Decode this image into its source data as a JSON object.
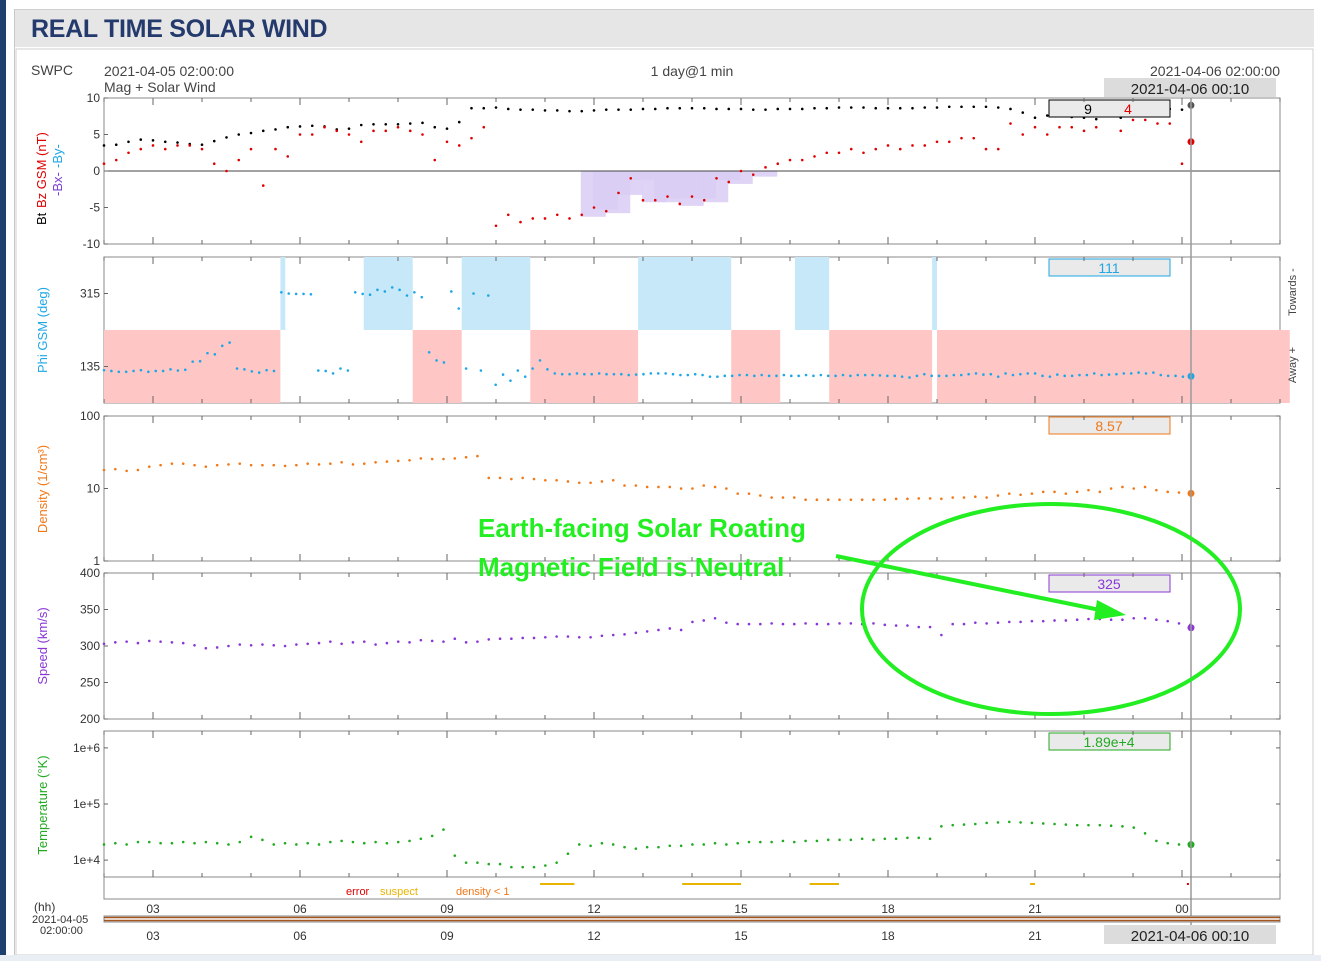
{
  "page": {
    "title": "REAL TIME SOLAR WIND"
  },
  "header": {
    "source": "SWPC",
    "start_time": "2021-04-05 02:00:00",
    "subtitle": "Mag + Solar Wind",
    "span": "1 day@1 min",
    "end_time": "2021-04-06 02:00:00",
    "cursor_time": "2021-04-06 00:10"
  },
  "annotation": {
    "line1": "Earth-facing Solar Roating",
    "line2": "Magnetic Field is Neutral",
    "color": "#22ee22"
  },
  "quality_legend": {
    "error": "error",
    "suspect": "suspect",
    "density": "density < 1"
  },
  "time_axis": {
    "hh_label": "(hh)",
    "start_date": "2021-04-05",
    "start_clock": "02:00:00",
    "ticks": [
      "03",
      "06",
      "09",
      "12",
      "15",
      "18",
      "21",
      "00"
    ],
    "cursor_label": "2021-04-06 00:10"
  },
  "colors": {
    "bt": "#000000",
    "bz": "#e00000",
    "bx": "#7e3fd6",
    "by": "#1ea7e6",
    "phi": "#1ea7e6",
    "density": "#f07818",
    "speed": "#8a36d6",
    "temp": "#22aa22"
  },
  "chart_data": [
    {
      "type": "line",
      "title": "Mag",
      "ylabel_parts": [
        "Bt",
        "Bz GSM (nT)",
        "-Bx-",
        "-By-"
      ],
      "ylim": [
        -10,
        10
      ],
      "yticks": [
        "10",
        "5",
        "0",
        "-5",
        "-10"
      ],
      "readout": {
        "bt": "9",
        "bz": "4"
      },
      "x_hours": [
        0,
        0.5,
        1,
        1.5,
        2,
        2.5,
        3,
        3.5,
        4,
        4.5,
        5,
        5.5,
        6,
        6.5,
        7,
        7.5,
        8,
        8.5,
        9,
        9.5,
        10,
        10.5,
        11,
        11.5,
        12,
        12.5,
        13,
        13.5,
        14,
        14.5,
        15,
        15.5,
        16,
        16.5,
        17,
        17.5,
        18,
        18.5,
        19,
        19.5,
        20,
        20.5,
        21,
        21.5,
        22,
        22.5,
        23,
        23.5,
        24,
        24.5,
        25,
        25.5,
        26,
        26.5,
        27,
        27.5,
        28,
        28.5,
        29,
        29.5,
        30,
        30.5,
        31,
        31.5,
        32,
        32.5,
        33,
        33.5,
        34,
        34.5,
        35,
        35.5,
        36,
        36.5,
        37,
        37.5,
        38,
        38.5,
        39,
        39.5,
        40,
        40.5,
        41,
        41.5,
        42,
        42.5,
        43,
        43.5,
        44,
        44.5,
        45,
        45.5,
        46,
        46.5,
        47,
        47.5,
        48
      ],
      "series": [
        {
          "name": "Bt",
          "key": "bt",
          "values": [
            3.5,
            3.6,
            4,
            4.3,
            4.2,
            4,
            3.9,
            3.7,
            3.6,
            4.1,
            4.6,
            5,
            5.2,
            5.5,
            5.7,
            6,
            6.1,
            6.2,
            6.1,
            5.7,
            5.8,
            6.3,
            6.4,
            6.4,
            6.4,
            6.5,
            6.6,
            6,
            5.8,
            6.7,
            8.6,
            8.6,
            8.7,
            8.5,
            8.4,
            8.4,
            8.3,
            8.3,
            8.2,
            8.2,
            8.3,
            8.4,
            8.4,
            8.4,
            8.5,
            8.5,
            8.6,
            8.6,
            8.6,
            8.6,
            8.5,
            8.5,
            8.5,
            8.4,
            8.4,
            8.5,
            8.5,
            8.5,
            8.6,
            8.6,
            8.7,
            8.7,
            8.7,
            8.6,
            8.6,
            8.6,
            8.6,
            8.7,
            8.7,
            8.8,
            8.8,
            8.8,
            8.8,
            8.7,
            8.5,
            8,
            7.3,
            7.6,
            7.5,
            7.4,
            7.3,
            7.1,
            7.5,
            7.3,
            7.8,
            7.9,
            8.0,
            8.5,
            8.4,
            8.2,
            8.5,
            8.7,
            8.6,
            8.7,
            8.9,
            9.0,
            9.0
          ]
        },
        {
          "name": "Bz GSM",
          "key": "bz",
          "values": [
            1,
            1.5,
            2.5,
            3,
            3.5,
            3,
            3.5,
            3.5,
            3,
            1,
            0,
            1.5,
            3,
            -2,
            3,
            2,
            5,
            5,
            6,
            5.5,
            5,
            4,
            5.5,
            5.5,
            6,
            5.5,
            5,
            1.5,
            4,
            3.5,
            4.5,
            6,
            -7.5,
            -6,
            -7,
            -6.5,
            -6.5,
            -6,
            -6.5,
            -6,
            -5,
            -5.5,
            -3,
            -1,
            -4,
            -4,
            -3.5,
            -4.5,
            -3.5,
            -4,
            -1,
            -1.5,
            0,
            -0.5,
            0.5,
            1,
            1.5,
            1.5,
            2,
            2.5,
            2.5,
            3,
            2.5,
            3,
            3.5,
            3,
            3.5,
            3.5,
            4,
            4,
            4.5,
            4.5,
            3,
            3,
            6.5,
            5,
            6,
            5,
            6,
            6,
            5.5,
            6,
            7.5,
            5.5,
            7,
            7,
            6.5,
            6.5,
            1,
            -2,
            -1,
            0,
            2,
            3.5,
            4,
            4,
            4
          ]
        }
      ]
    },
    {
      "type": "scatter",
      "title": "Phi",
      "ylabel": "Phi GSM (deg)",
      "ylim": [
        45,
        405
      ],
      "yticks": [
        "315",
        "135"
      ],
      "right_labels": [
        "Towards -",
        "Away +"
      ],
      "readout": "111",
      "series": [
        {
          "name": "Phi GSM",
          "values": [
            126,
            124,
            122,
            122,
            124,
            126,
            122,
            124,
            124,
            128,
            125,
            127,
            147,
            148,
            168,
            165,
            186,
            194,
            130,
            128,
            123,
            120,
            126,
            124,
            318,
            315,
            314,
            314,
            313,
            125,
            124,
            118,
            130,
            125,
            318,
            314,
            312,
            324,
            320,
            330,
            324,
            310,
            318,
            306,
            170,
            150,
            145,
            320,
            278,
            130,
            315,
            125,
            310,
            90,
            115,
            100,
            125,
            110,
            130,
            150,
            128,
            118,
            116,
            116,
            118,
            116,
            116,
            118,
            116,
            116,
            116,
            114,
            115,
            116,
            118,
            118,
            118,
            116,
            114,
            114,
            116,
            114,
            110,
            110,
            112,
            112,
            114,
            114,
            112,
            114,
            112,
            112,
            114,
            112,
            112,
            114,
            112,
            114,
            112,
            112,
            114,
            112,
            114,
            114,
            114,
            113,
            112,
            112,
            110,
            108,
            112,
            116,
            112,
            112,
            112,
            114,
            114,
            116,
            118,
            115,
            116,
            110,
            118,
            114,
            116,
            118,
            118,
            112,
            110,
            115,
            112,
            112,
            114,
            114,
            118,
            114,
            115,
            116,
            118,
            118,
            120,
            118,
            120,
            114,
            112,
            112,
            110,
            111
          ]
        }
      ],
      "regions": [
        {
          "start": 0,
          "end": 3.6,
          "side": "away"
        },
        {
          "start": 3.6,
          "end": 3.7,
          "side": "towards"
        },
        {
          "start": 3.7,
          "end": 5.3,
          "side": "none"
        },
        {
          "start": 5.3,
          "end": 6.3,
          "side": "towards"
        },
        {
          "start": 6.3,
          "end": 7.3,
          "side": "away"
        },
        {
          "start": 7.3,
          "end": 8.7,
          "side": "towards"
        },
        {
          "start": 8.7,
          "end": 10.9,
          "side": "away"
        },
        {
          "start": 10.9,
          "end": 12.8,
          "side": "towards"
        },
        {
          "start": 12.8,
          "end": 13.8,
          "side": "away"
        },
        {
          "start": 13.8,
          "end": 14.1,
          "side": "none"
        },
        {
          "start": 14.1,
          "end": 14.8,
          "side": "towards"
        },
        {
          "start": 14.8,
          "end": 16.9,
          "side": "away"
        },
        {
          "start": 16.9,
          "end": 17.0,
          "side": "towards"
        },
        {
          "start": 17.0,
          "end": 24.2,
          "side": "away"
        }
      ]
    },
    {
      "type": "line",
      "title": "Density",
      "ylabel": "Density (1/cm³)",
      "scale": "log",
      "ylim": [
        1,
        100
      ],
      "yticks": [
        "100",
        "10",
        "1"
      ],
      "readout": "8.57",
      "values": [
        18,
        18.5,
        17.5,
        18,
        20,
        21,
        22,
        22,
        21,
        20,
        21,
        21.5,
        22,
        21,
        21,
        21,
        20.5,
        21,
        22,
        21.5,
        22,
        23,
        21.5,
        22,
        23,
        23.5,
        24,
        24.5,
        26,
        25.5,
        25.5,
        26,
        27,
        28,
        14,
        14,
        13.5,
        14,
        13.5,
        13,
        13,
        12.5,
        12,
        12,
        12.5,
        13,
        11,
        11,
        10.5,
        10.5,
        10.5,
        10,
        10,
        11,
        10.5,
        10,
        8.5,
        8.5,
        8,
        7.5,
        7.5,
        7.5,
        7,
        7,
        7,
        7,
        7,
        7,
        7,
        7,
        7.2,
        7.2,
        7.3,
        7.3,
        7.2,
        7.5,
        7.5,
        7.7,
        7.5,
        8,
        8.5,
        8.2,
        8.5,
        9,
        9,
        8.5,
        9,
        9.5,
        9,
        10,
        10.5,
        10,
        10.5,
        9.5,
        9,
        8.8,
        8.6
      ]
    },
    {
      "type": "line",
      "title": "Speed",
      "ylabel": "Speed (km/s)",
      "ylim": [
        200,
        400
      ],
      "yticks": [
        "400",
        "350",
        "300",
        "250",
        "200"
      ],
      "readout": "325",
      "values": [
        303,
        305,
        306,
        304,
        307,
        306,
        305,
        304,
        301,
        297,
        298,
        300,
        302,
        301,
        302,
        301,
        300,
        302,
        303,
        304,
        306,
        303,
        305,
        306,
        302,
        304,
        306,
        305,
        308,
        307,
        306,
        310,
        305,
        306,
        309,
        310,
        310,
        311,
        311,
        312,
        313,
        313,
        312,
        312,
        314,
        315,
        316,
        318,
        320,
        322,
        324,
        322,
        333,
        335,
        338,
        332,
        330,
        330,
        330,
        331,
        330,
        330,
        331,
        330,
        330,
        331,
        331,
        330,
        331,
        329,
        328,
        328,
        326,
        326,
        315,
        330,
        330,
        332,
        331,
        332,
        333,
        333,
        334,
        334,
        335,
        335,
        336,
        337,
        337,
        336,
        336,
        338,
        338,
        336,
        334,
        331,
        329
      ]
    },
    {
      "type": "line",
      "title": "Temperature",
      "ylabel": "Temperature (°K)",
      "scale": "log",
      "ylim": [
        5000,
        2000000
      ],
      "yticks": [
        "1e+6",
        "1e+5",
        "1e+4"
      ],
      "readout": "1.89e+4",
      "values": [
        19000,
        20000,
        19000,
        21000,
        21000,
        20000,
        20000,
        21000,
        20000,
        21000,
        20000,
        19000,
        21000,
        26000,
        23000,
        19000,
        20000,
        19000,
        20000,
        19000,
        21000,
        22000,
        21000,
        20000,
        21000,
        20000,
        21000,
        22000,
        24000,
        27000,
        35000,
        12000,
        9000,
        9000,
        8500,
        8500,
        7500,
        7500,
        7500,
        8000,
        9000,
        13000,
        19000,
        18000,
        20000,
        19000,
        17000,
        16000,
        17000,
        17000,
        18000,
        18000,
        19000,
        19000,
        20000,
        19000,
        20000,
        21000,
        21000,
        21000,
        22000,
        21000,
        22000,
        22000,
        23000,
        23000,
        23000,
        24000,
        23000,
        24000,
        24000,
        25000,
        25000,
        24000,
        40000,
        42000,
        43000,
        44000,
        46000,
        47000,
        48000,
        47000,
        46000,
        45000,
        44000,
        43000,
        42000,
        42000,
        42000,
        41000,
        40000,
        38000,
        30000,
        22000,
        20000,
        19000,
        19000
      ]
    }
  ]
}
